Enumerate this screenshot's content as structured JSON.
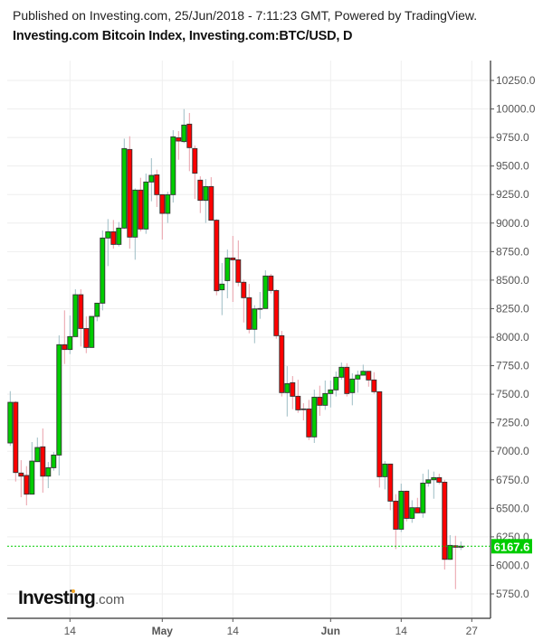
{
  "header": {
    "published": "Published on Investing.com, 25/Jun/2018 - 7:11:23 GMT, Powered by TradingView.",
    "title": "Investing.com Bitcoin Index, Investing.com:BTC/USD, D"
  },
  "logo": {
    "brand": "Investing",
    "domain": ".com"
  },
  "chart_data": {
    "type": "candlestick",
    "title": "Investing.com Bitcoin Index, Investing.com:BTC/USD, D",
    "ylim": [
      5650,
      10400
    ],
    "yticks": [
      "5750.0",
      "6000.0",
      "6250.0",
      "6500.0",
      "6750.0",
      "7000.0",
      "7250.0",
      "7500.0",
      "7750.0",
      "8000.0",
      "8250.0",
      "8500.0",
      "8750.0",
      "9000.0",
      "9250.0",
      "9500.0",
      "9750.0",
      "10000.0",
      "10250.0"
    ],
    "xticks": [
      {
        "label": "14",
        "date": "2018-04-14",
        "bold": false
      },
      {
        "label": "May",
        "date": "2018-05-01",
        "bold": true
      },
      {
        "label": "14",
        "date": "2018-05-14",
        "bold": false
      },
      {
        "label": "Jun",
        "date": "2018-06-01",
        "bold": true
      },
      {
        "label": "14",
        "date": "2018-06-14",
        "bold": false
      },
      {
        "label": "27",
        "date": "2018-06-27",
        "bold": false
      }
    ],
    "grid": true,
    "last_price": "6167.6",
    "colors": {
      "up": "#00cc00",
      "down": "#ff0000",
      "up_wick": "#9dbcc4",
      "down_wick": "#e99ea8",
      "last_price": "#00cc00"
    },
    "columns": [
      "date",
      "open",
      "high",
      "low",
      "close"
    ],
    "candles": [
      [
        "2018-04-03",
        7073,
        7527,
        7047,
        7429
      ],
      [
        "2018-04-04",
        7429,
        7440,
        6735,
        6814
      ],
      [
        "2018-04-05",
        6809,
        6922,
        6597,
        6782
      ],
      [
        "2018-04-06",
        6788,
        6870,
        6526,
        6624
      ],
      [
        "2018-04-07",
        6624,
        7081,
        6624,
        6914
      ],
      [
        "2018-04-08",
        6909,
        7120,
        6909,
        7033
      ],
      [
        "2018-04-09",
        7039,
        7200,
        6637,
        6782
      ],
      [
        "2018-04-10",
        6782,
        6906,
        6677,
        6856
      ],
      [
        "2018-04-11",
        6856,
        6994,
        6830,
        6967
      ],
      [
        "2018-04-12",
        6967,
        8016,
        6788,
        7934
      ],
      [
        "2018-04-13",
        7934,
        8235,
        7765,
        7892
      ],
      [
        "2018-04-14",
        7892,
        8190,
        7852,
        8005
      ],
      [
        "2018-04-15",
        8005,
        8420,
        8005,
        8372
      ],
      [
        "2018-04-16",
        8372,
        8420,
        7918,
        8076
      ],
      [
        "2018-04-17",
        8076,
        8182,
        7860,
        7910
      ],
      [
        "2018-04-18",
        7910,
        8182,
        7910,
        8182
      ],
      [
        "2018-04-19",
        8182,
        8298,
        8140,
        8298
      ],
      [
        "2018-04-20",
        8298,
        8935,
        8235,
        8869
      ],
      [
        "2018-04-21",
        8869,
        9035,
        8623,
        8924
      ],
      [
        "2018-04-22",
        8924,
        9027,
        8776,
        8813
      ],
      [
        "2018-04-23",
        8813,
        9009,
        8795,
        8956
      ],
      [
        "2018-04-24",
        8956,
        9740,
        8948,
        9653
      ],
      [
        "2018-04-25",
        9645,
        9761,
        8776,
        8877
      ],
      [
        "2018-04-26",
        8877,
        9304,
        8679,
        9289
      ],
      [
        "2018-04-27",
        9289,
        9397,
        8927,
        8948
      ],
      [
        "2018-04-28",
        8948,
        9434,
        8906,
        9360
      ],
      [
        "2018-04-29",
        9360,
        9569,
        9191,
        9418
      ],
      [
        "2018-04-30",
        9423,
        9468,
        9141,
        9249
      ],
      [
        "2018-05-01",
        9249,
        9249,
        8856,
        9085
      ],
      [
        "2018-05-02",
        9085,
        9275,
        9001,
        9249
      ],
      [
        "2018-05-03",
        9249,
        9814,
        9180,
        9756
      ],
      [
        "2018-05-04",
        9748,
        9806,
        9555,
        9719
      ],
      [
        "2018-05-05",
        9714,
        9999,
        9701,
        9859
      ],
      [
        "2018-05-06",
        9867,
        9965,
        9455,
        9661
      ],
      [
        "2018-05-07",
        9653,
        9680,
        9212,
        9437
      ],
      [
        "2018-05-08",
        9376,
        9410,
        9088,
        9199
      ],
      [
        "2018-05-09",
        9199,
        9386,
        9001,
        9320
      ],
      [
        "2018-05-10",
        9320,
        9402,
        9025,
        9025
      ],
      [
        "2018-05-11",
        9025,
        9035,
        8367,
        8407
      ],
      [
        "2018-05-12",
        8415,
        8650,
        8193,
        8465
      ],
      [
        "2018-05-13",
        8496,
        8768,
        8341,
        8694
      ],
      [
        "2018-05-14",
        8694,
        8887,
        8309,
        8678
      ],
      [
        "2018-05-15",
        8678,
        8848,
        8446,
        8481
      ],
      [
        "2018-05-16",
        8481,
        8504,
        8129,
        8346
      ],
      [
        "2018-05-17",
        8346,
        8467,
        8034,
        8069
      ],
      [
        "2018-05-18",
        8069,
        8280,
        7947,
        8248
      ],
      [
        "2018-05-19",
        8251,
        8396,
        8161,
        8251
      ],
      [
        "2018-05-20",
        8251,
        8586,
        8251,
        8536
      ],
      [
        "2018-05-21",
        8536,
        8555,
        8383,
        8409
      ],
      [
        "2018-05-22",
        8409,
        8420,
        7987,
        8013
      ],
      [
        "2018-05-23",
        8013,
        8055,
        7480,
        7514
      ],
      [
        "2018-05-24",
        7514,
        7746,
        7305,
        7593
      ],
      [
        "2018-05-25",
        7601,
        7659,
        7369,
        7482
      ],
      [
        "2018-05-26",
        7482,
        7627,
        7337,
        7363
      ],
      [
        "2018-05-27",
        7371,
        7421,
        7271,
        7366
      ],
      [
        "2018-05-28",
        7371,
        7450,
        7099,
        7126
      ],
      [
        "2018-05-29",
        7126,
        7540,
        7073,
        7474
      ],
      [
        "2018-05-30",
        7474,
        7575,
        7311,
        7403
      ],
      [
        "2018-05-31",
        7403,
        7620,
        7363,
        7506
      ],
      [
        "2018-06-01",
        7506,
        7620,
        7384,
        7538
      ],
      [
        "2018-06-02",
        7538,
        7699,
        7480,
        7649
      ],
      [
        "2018-06-03",
        7649,
        7778,
        7627,
        7736
      ],
      [
        "2018-06-04",
        7736,
        7772,
        7480,
        7506
      ],
      [
        "2018-06-05",
        7514,
        7683,
        7403,
        7633
      ],
      [
        "2018-06-06",
        7633,
        7707,
        7514,
        7667
      ],
      [
        "2018-06-07",
        7667,
        7759,
        7667,
        7701
      ],
      [
        "2018-06-08",
        7701,
        7701,
        7566,
        7625
      ],
      [
        "2018-06-09",
        7625,
        7693,
        7503,
        7522
      ],
      [
        "2018-06-10",
        7522,
        7522,
        6682,
        6777
      ],
      [
        "2018-06-11",
        6777,
        6914,
        6666,
        6888
      ],
      [
        "2018-06-12",
        6888,
        6888,
        6484,
        6563
      ],
      [
        "2018-06-13",
        6563,
        6624,
        6143,
        6317
      ],
      [
        "2018-06-14",
        6317,
        6716,
        6293,
        6650
      ],
      [
        "2018-06-15",
        6650,
        6655,
        6386,
        6412
      ],
      [
        "2018-06-16",
        6412,
        6571,
        6373,
        6505
      ],
      [
        "2018-06-17",
        6505,
        6592,
        6460,
        6460
      ],
      [
        "2018-06-18",
        6461,
        6803,
        6418,
        6721
      ],
      [
        "2018-06-19",
        6721,
        6840,
        6690,
        6750
      ],
      [
        "2018-06-20",
        6750,
        6822,
        6584,
        6769
      ],
      [
        "2018-06-21",
        6769,
        6803,
        6711,
        6729
      ],
      [
        "2018-06-22",
        6729,
        6750,
        5963,
        6053
      ],
      [
        "2018-06-23",
        6053,
        6265,
        6048,
        6175
      ],
      [
        "2018-06-24",
        6172,
        6259,
        5792,
        6159
      ],
      [
        "2018-06-25",
        6159,
        6209,
        6135,
        6168
      ]
    ]
  }
}
